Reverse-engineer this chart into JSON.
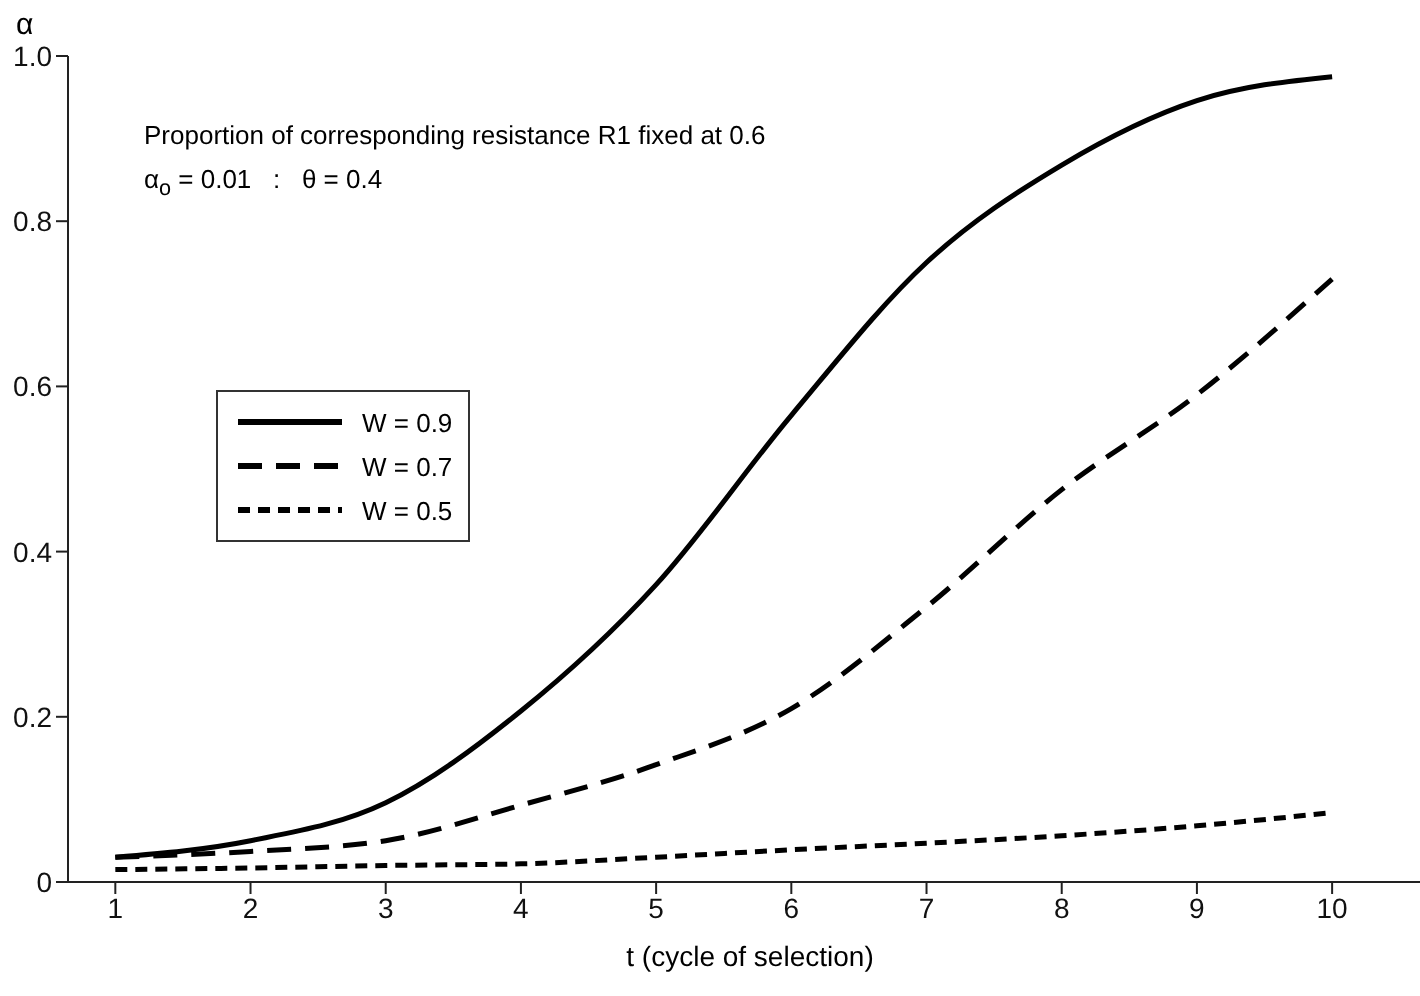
{
  "chart_data": {
    "type": "line",
    "xlabel": "t (cycle of selection)",
    "ylabel": "α",
    "x": [
      1,
      2,
      3,
      4,
      5,
      6,
      7,
      8,
      9,
      10
    ],
    "series": [
      {
        "name": "W = 0.9",
        "color": "#000000",
        "line_style": "solid",
        "values": [
          0.03,
          0.05,
          0.096,
          0.207,
          0.36,
          0.565,
          0.75,
          0.868,
          0.946,
          0.975
        ]
      },
      {
        "name": "W = 0.7",
        "color": "#000000",
        "line_style": "dashed",
        "values": [
          0.03,
          0.037,
          0.05,
          0.093,
          0.142,
          0.21,
          0.333,
          0.475,
          0.59,
          0.73
        ]
      },
      {
        "name": "W = 0.5",
        "color": "#000000",
        "line_style": "dotted",
        "values": [
          0.015,
          0.017,
          0.02,
          0.022,
          0.03,
          0.039,
          0.047,
          0.056,
          0.068,
          0.084
        ]
      }
    ],
    "xlim": [
      0.65,
      10.65
    ],
    "xticks": [
      1,
      2,
      3,
      4,
      5,
      6,
      7,
      8,
      9,
      10
    ],
    "ylim": [
      0,
      1.0
    ],
    "yticks": [
      0,
      {
        "value": 0.2,
        "label": "0.2"
      },
      {
        "value": 0.4,
        "label": "0.4"
      },
      {
        "value": 0.6,
        "label": "0.6"
      },
      {
        "value": 0.8,
        "label": "0.8"
      },
      {
        "value": 1.0,
        "label": "1.0"
      }
    ],
    "grid": false,
    "legend": "left",
    "marker": "none",
    "annotations": [
      "Proportion of corresponding resistance R1 fixed at 0.6",
      "α$_{o}$ = 0.01   :   θ = 0.4"
    ]
  }
}
